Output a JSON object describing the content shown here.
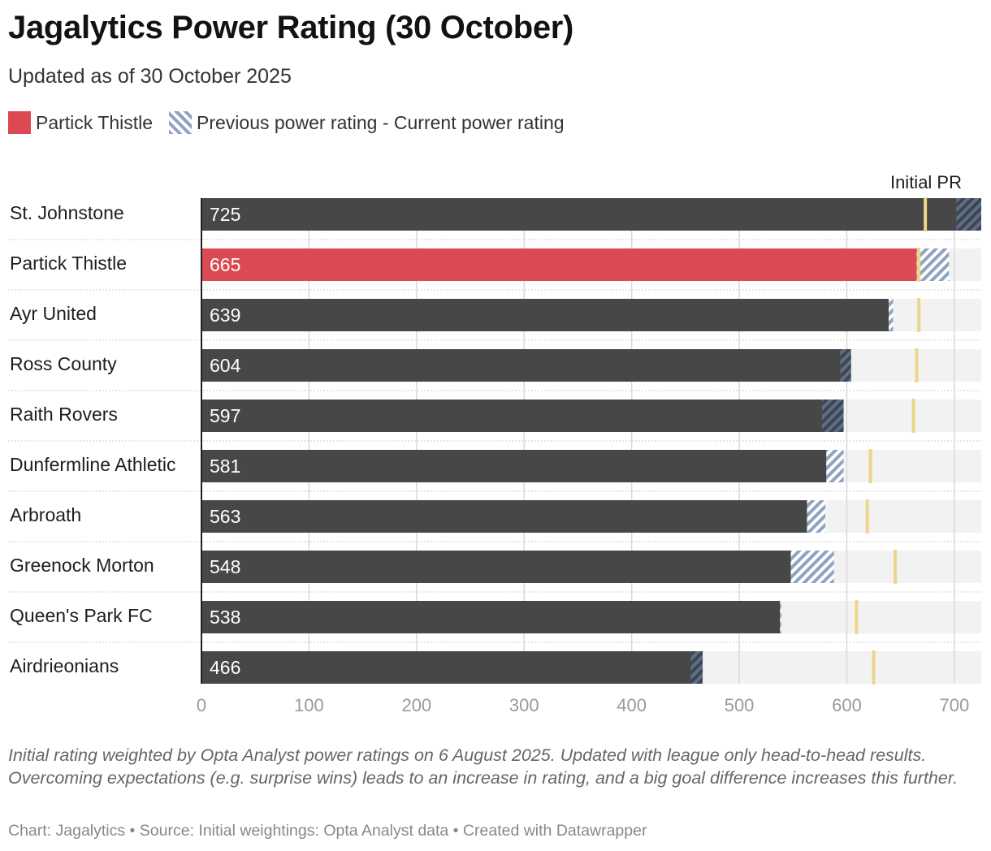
{
  "title": "Jagalytics Power Rating (30 October)",
  "subtitle": "Updated as of 30 October 2025",
  "legend": {
    "highlight_label": "Partick Thistle",
    "hatch_label": "Previous power rating - Current power rating"
  },
  "initial_pr_label": "Initial PR",
  "notes": "Initial rating weighted by Opta Analyst power ratings on 6 August 2025. Updated with league only head-to-head results. Overcoming expectations (e.g. surprise wins) leads to an increase in rating, and a big goal difference increases this further.",
  "credit": "Chart: Jagalytics • Source: Initial weightings: Opta Analyst data • Created with Datawrapper",
  "colors": {
    "bar": "#474747",
    "highlight": "#db4a52",
    "hatch": "#8ea3c0",
    "hatch_dark": "#5d6f88",
    "initial_marker": "#ebd68a",
    "track": "#f2f2f2",
    "grid": "#d9d9d9"
  },
  "chart_data": {
    "type": "bar",
    "orientation": "horizontal",
    "xlim": [
      0,
      725
    ],
    "ticks": [
      0,
      100,
      200,
      300,
      400,
      500,
      600,
      700
    ],
    "categories": [
      "St. Johnstone",
      "Partick Thistle",
      "Ayr United",
      "Ross County",
      "Raith Rovers",
      "Dunfermline Athletic",
      "Arbroath",
      "Greenock Morton",
      "Queen's Park FC",
      "Airdrieonians"
    ],
    "series": [
      {
        "name": "Partick Thistle",
        "values": [
          725,
          665,
          639,
          604,
          597,
          581,
          563,
          548,
          538,
          466
        ]
      },
      {
        "name": "Previous power rating - Current power rating",
        "values": [
          702,
          695,
          643,
          594,
          577,
          597,
          580,
          588,
          539,
          455
        ]
      },
      {
        "name": "Initial PR",
        "values": [
          673,
          667,
          667,
          665,
          662,
          622,
          619,
          645,
          609,
          625
        ]
      }
    ],
    "highlight": "Partick Thistle",
    "grid": true
  }
}
